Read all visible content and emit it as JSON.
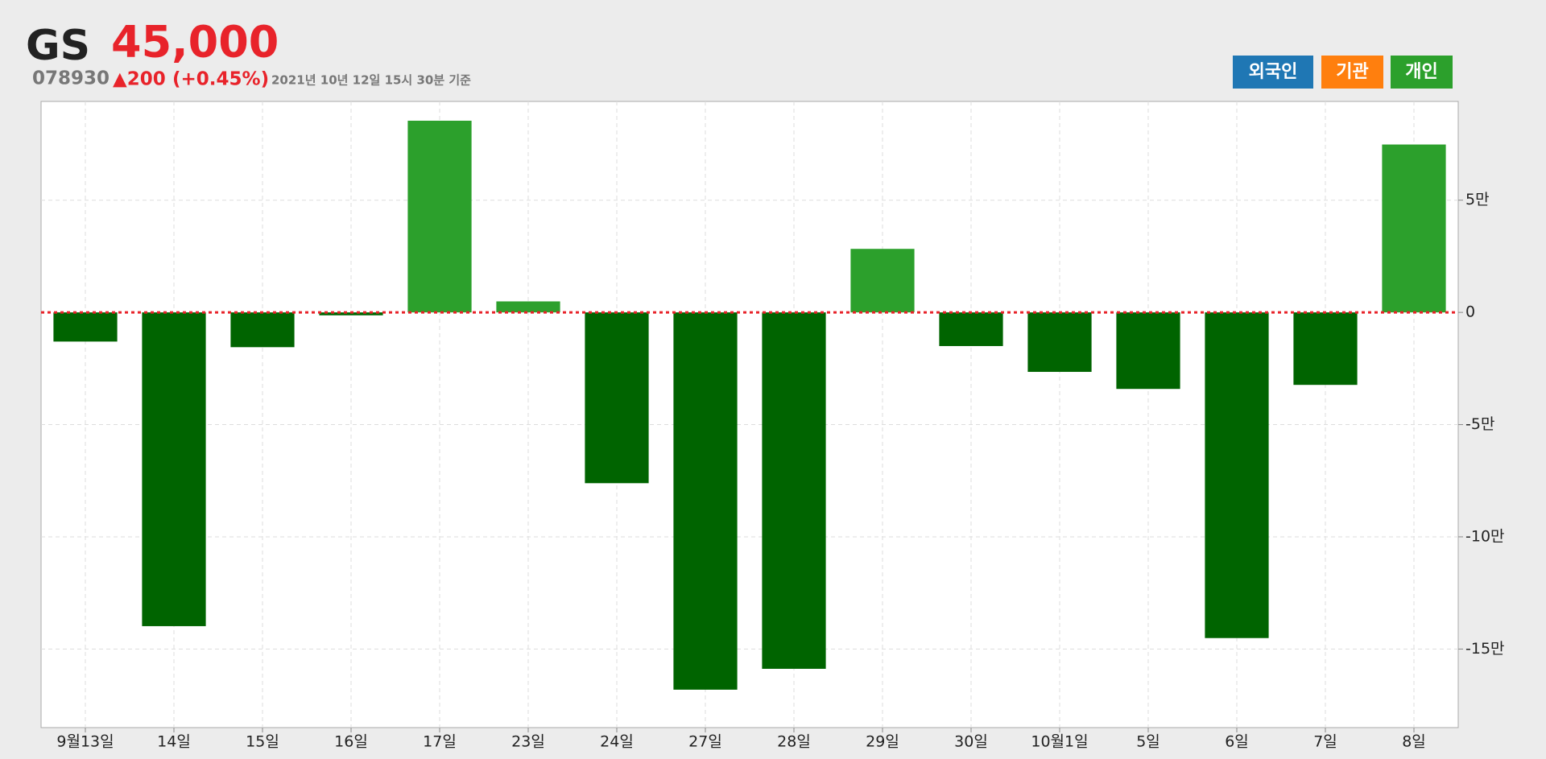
{
  "header": {
    "name": "GS",
    "price": "45,000",
    "code": "078930",
    "change": "▲200",
    "change_pct": "(+0.45%)",
    "timestamp": "2021년 10년 12일 15시 30분 기준",
    "buttons": [
      {
        "label": "외국인",
        "color": "#1f77b4"
      },
      {
        "label": "기관",
        "color": "#ff7f0e"
      },
      {
        "label": "개인",
        "color": "#2ca02c"
      }
    ]
  },
  "chart_data": {
    "type": "bar",
    "categories": [
      "9월13일",
      "14일",
      "15일",
      "16일",
      "17일",
      "23일",
      "24일",
      "27일",
      "28일",
      "29일",
      "30일",
      "10월1일",
      "5일",
      "6일",
      "7일",
      "8일"
    ],
    "values": [
      -13000,
      -139800,
      -15500,
      -1300,
      85400,
      4900,
      -76100,
      -168100,
      -158800,
      28300,
      -15000,
      -26500,
      -34100,
      -145100,
      -32300,
      74800
    ],
    "positive_color": "#2ca02c",
    "negative_color": "#006400",
    "ylim": [
      -185000,
      94000
    ],
    "yticks": [
      {
        "value": 50000,
        "label": "5만"
      },
      0,
      {
        "value": -50000,
        "label": "-5만"
      },
      {
        "value": -100000,
        "label": "-10만"
      },
      {
        "value": -150000,
        "label": "-15만"
      }
    ],
    "grid": true,
    "zero_line_color": "#e8232a"
  }
}
